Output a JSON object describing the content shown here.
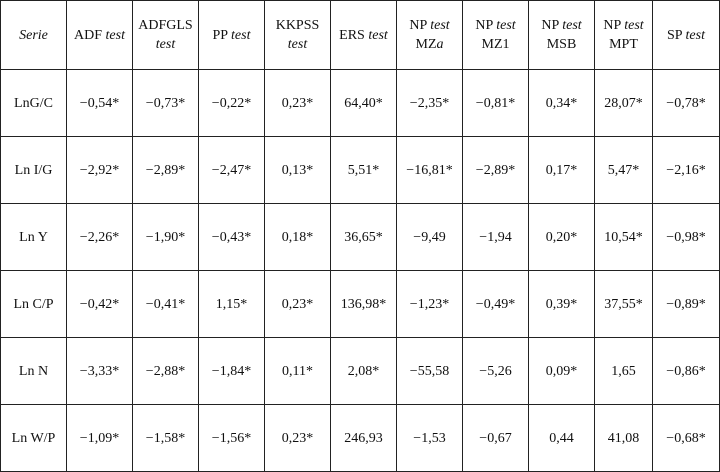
{
  "table": {
    "header": [
      [
        {
          "text": "Serie",
          "italic": true
        }
      ],
      [
        {
          "text": "ADF "
        },
        {
          "text": "test",
          "italic": true
        }
      ],
      [
        {
          "text": "ADFGLS "
        },
        {
          "text": "test",
          "italic": true
        }
      ],
      [
        {
          "text": "PP "
        },
        {
          "text": "test",
          "italic": true
        }
      ],
      [
        {
          "text": "KKPSS "
        },
        {
          "text": "test",
          "italic": true
        }
      ],
      [
        {
          "text": "ERS "
        },
        {
          "text": "test",
          "italic": true
        }
      ],
      [
        {
          "text": "NP "
        },
        {
          "text": "test",
          "italic": true
        },
        {
          "text": " MZ"
        },
        {
          "text": "a",
          "italic": true
        }
      ],
      [
        {
          "text": "NP "
        },
        {
          "text": "test",
          "italic": true
        },
        {
          "text": " MZ1"
        }
      ],
      [
        {
          "text": "NP "
        },
        {
          "text": "test",
          "italic": true
        },
        {
          "text": " MSB"
        }
      ],
      [
        {
          "text": "NP "
        },
        {
          "text": "test",
          "italic": true
        },
        {
          "text": " MPT"
        }
      ],
      [
        {
          "text": "SP "
        },
        {
          "text": "test",
          "italic": true
        }
      ]
    ],
    "rows": [
      [
        "LnG/C",
        "−0,54*",
        "−0,73*",
        "−0,22*",
        "0,23*",
        "64,40*",
        "−2,35*",
        "−0,81*",
        "0,34*",
        "28,07*",
        "−0,78*"
      ],
      [
        "Ln I/G",
        "−2,92*",
        "−2,89*",
        "−2,47*",
        "0,13*",
        "5,51*",
        "−16,81*",
        "−2,89*",
        "0,17*",
        "5,47*",
        "−2,16*"
      ],
      [
        "Ln Y",
        "−2,26*",
        "−1,90*",
        "−0,43*",
        "0,18*",
        "36,65*",
        "−9,49",
        "−1,94",
        "0,20*",
        "10,54*",
        "−0,98*"
      ],
      [
        "Ln C/P",
        "−0,42*",
        "−0,41*",
        "1,15*",
        "0,23*",
        "136,98*",
        "−1,23*",
        "−0,49*",
        "0,39*",
        "37,55*",
        "−0,89*"
      ],
      [
        "Ln N",
        "−3,33*",
        "−2,88*",
        "−1,84*",
        "0,11*",
        "2,08*",
        "−55,58",
        "−5,26",
        "0,09*",
        "1,65",
        "−0,86*"
      ],
      [
        "Ln W/P",
        "−1,09*",
        "−1,58*",
        "−1,56*",
        "0,23*",
        "246,93",
        "−1,53",
        "−0,67",
        "0,44",
        "41,08",
        "−0,68*"
      ]
    ]
  }
}
